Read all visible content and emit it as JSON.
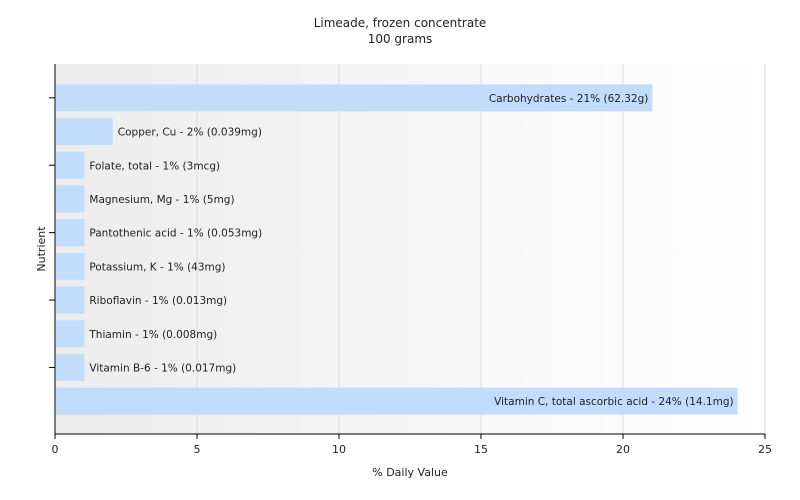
{
  "chart_data": {
    "type": "bar",
    "orientation": "horizontal",
    "title": "Limeade, frozen concentrate",
    "subtitle": "100 grams",
    "xlabel": "% Daily Value",
    "ylabel": "Nutrient",
    "xlim": [
      0,
      25
    ],
    "xticks": [
      0,
      5,
      10,
      15,
      20,
      25
    ],
    "grid": true,
    "bar_color": "#c2dcfc",
    "categories": [
      "Carbohydrates",
      "Copper, Cu",
      "Folate, total",
      "Magnesium, Mg",
      "Pantothenic acid",
      "Potassium, K",
      "Riboflavin",
      "Thiamin",
      "Vitamin B-6",
      "Vitamin C, total ascorbic acid"
    ],
    "values": [
      21,
      2,
      1,
      1,
      1,
      1,
      1,
      1,
      1,
      24
    ],
    "labels": [
      "Carbohydrates - 21% (62.32g)",
      "Copper, Cu - 2% (0.039mg)",
      "Folate, total - 1% (3mcg)",
      "Magnesium, Mg - 1% (5mg)",
      "Pantothenic acid - 1% (0.053mg)",
      "Potassium, K - 1% (43mg)",
      "Riboflavin - 1% (0.013mg)",
      "Thiamin - 1% (0.008mg)",
      "Vitamin B-6 - 1% (0.017mg)",
      "Vitamin C, total ascorbic acid - 24% (14.1mg)"
    ]
  }
}
